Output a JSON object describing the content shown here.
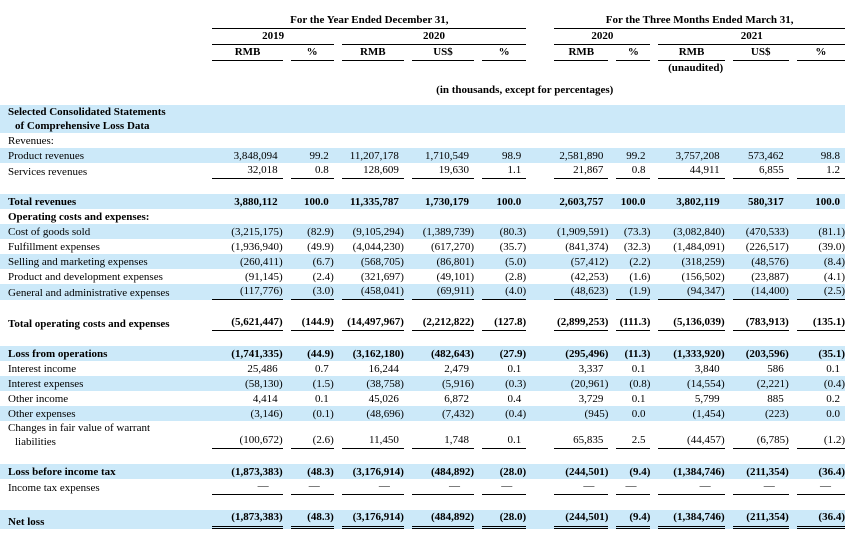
{
  "document": {
    "colors": {
      "row_highlight": "#cce9f9",
      "text": "#000000",
      "background": "#ffffff"
    },
    "header": {
      "year_group_label": "For the Year Ended December 31,",
      "quarter_group_label": "For the Three Months Ended March 31,",
      "year_columns": [
        "2019",
        "2020"
      ],
      "quarter_columns": [
        "2020",
        "2021"
      ],
      "unit_headers": [
        "RMB",
        "%",
        "RMB",
        "US$",
        "%",
        "RMB",
        "%",
        "RMB",
        "US$",
        "%"
      ],
      "unaudited_note": "(unaudited)",
      "units_note": "(in thousands, except for percentages)"
    },
    "rows": [
      {
        "label": "Selected Consolidated Statements",
        "label2": "of Comprehensive Loss Data",
        "bold": true,
        "shaded": true,
        "rule": "none",
        "values": null
      },
      {
        "label": "Revenues:",
        "bold": false,
        "shaded": false,
        "rule": "none",
        "values": null
      },
      {
        "label": "Product revenues",
        "bold": false,
        "shaded": true,
        "rule": "none",
        "values": [
          "3,848,094",
          "99.2",
          "11,207,178",
          "1,710,549",
          "98.9",
          "2,581,890",
          "99.2",
          "3,757,208",
          "573,462",
          "98.8"
        ]
      },
      {
        "label": "Services revenues",
        "bold": false,
        "shaded": false,
        "rule": "single",
        "values": [
          "32,018",
          "0.8",
          "128,609",
          "19,630",
          "1.1",
          "21,867",
          "0.8",
          "44,911",
          "6,855",
          "1.2"
        ]
      },
      {
        "spacer": true
      },
      {
        "label": "Total revenues",
        "bold": true,
        "shaded": true,
        "rule": "none",
        "values": [
          "3,880,112",
          "100.0",
          "11,335,787",
          "1,730,179",
          "100.0",
          "2,603,757",
          "100.0",
          "3,802,119",
          "580,317",
          "100.0"
        ]
      },
      {
        "label": "Operating costs and expenses:",
        "bold": true,
        "shaded": false,
        "rule": "none",
        "values": null
      },
      {
        "label": "Cost of goods sold",
        "bold": false,
        "shaded": true,
        "rule": "none",
        "values": [
          "(3,215,175)",
          "(82.9)",
          "(9,105,294)",
          "(1,389,739)",
          "(80.3)",
          "(1,909,591)",
          "(73.3)",
          "(3,082,840)",
          "(470,533)",
          "(81.1)"
        ]
      },
      {
        "label": "Fulfillment expenses",
        "bold": false,
        "shaded": false,
        "rule": "none",
        "values": [
          "(1,936,940)",
          "(49.9)",
          "(4,044,230)",
          "(617,270)",
          "(35.7)",
          "(841,374)",
          "(32.3)",
          "(1,484,091)",
          "(226,517)",
          "(39.0)"
        ]
      },
      {
        "label": "Selling and marketing expenses",
        "bold": false,
        "shaded": true,
        "rule": "none",
        "values": [
          "(260,411)",
          "(6.7)",
          "(568,705)",
          "(86,801)",
          "(5.0)",
          "(57,412)",
          "(2.2)",
          "(318,259)",
          "(48,576)",
          "(8.4)"
        ]
      },
      {
        "label": "Product and development expenses",
        "bold": false,
        "shaded": false,
        "rule": "none",
        "values": [
          "(91,145)",
          "(2.4)",
          "(321,697)",
          "(49,101)",
          "(2.8)",
          "(42,253)",
          "(1.6)",
          "(156,502)",
          "(23,887)",
          "(4.1)"
        ]
      },
      {
        "label": "General and administrative expenses",
        "bold": false,
        "shaded": true,
        "rule": "single",
        "values": [
          "(117,776)",
          "(3.0)",
          "(458,041)",
          "(69,911)",
          "(4.0)",
          "(48,623)",
          "(1.9)",
          "(94,347)",
          "(14,400)",
          "(2.5)"
        ]
      },
      {
        "spacer": true
      },
      {
        "label": "Total operating costs and expenses",
        "bold": true,
        "shaded": false,
        "rule": "single",
        "values": [
          "(5,621,447)",
          "(144.9)",
          "(14,497,967)",
          "(2,212,822)",
          "(127.8)",
          "(2,899,253)",
          "(111.3)",
          "(5,136,039)",
          "(783,913)",
          "(135.1)"
        ]
      },
      {
        "spacer": true
      },
      {
        "label": "Loss from operations",
        "bold": true,
        "shaded": true,
        "rule": "none",
        "values": [
          "(1,741,335)",
          "(44.9)",
          "(3,162,180)",
          "(482,643)",
          "(27.9)",
          "(295,496)",
          "(11.3)",
          "(1,333,920)",
          "(203,596)",
          "(35.1)"
        ]
      },
      {
        "label": "Interest income",
        "bold": false,
        "shaded": false,
        "rule": "none",
        "values": [
          "25,486",
          "0.7",
          "16,244",
          "2,479",
          "0.1",
          "3,337",
          "0.1",
          "3,840",
          "586",
          "0.1"
        ]
      },
      {
        "label": "Interest expenses",
        "bold": false,
        "shaded": true,
        "rule": "none",
        "values": [
          "(58,130)",
          "(1.5)",
          "(38,758)",
          "(5,916)",
          "(0.3)",
          "(20,961)",
          "(0.8)",
          "(14,554)",
          "(2,221)",
          "(0.4)"
        ]
      },
      {
        "label": "Other income",
        "bold": false,
        "shaded": false,
        "rule": "none",
        "values": [
          "4,414",
          "0.1",
          "45,026",
          "6,872",
          "0.4",
          "3,729",
          "0.1",
          "5,799",
          "885",
          "0.2"
        ]
      },
      {
        "label": "Other expenses",
        "bold": false,
        "shaded": true,
        "rule": "none",
        "values": [
          "(3,146)",
          "(0.1)",
          "(48,696)",
          "(7,432)",
          "(0.4)",
          "(945)",
          "0.0",
          "(1,454)",
          "(223)",
          "0.0"
        ]
      },
      {
        "label": "Changes in fair value of warrant",
        "label2": "liabilities",
        "bold": false,
        "shaded": false,
        "rule": "single",
        "values": [
          "(100,672)",
          "(2.6)",
          "11,450",
          "1,748",
          "0.1",
          "65,835",
          "2.5",
          "(44,457)",
          "(6,785)",
          "(1.2)"
        ]
      },
      {
        "spacer": true
      },
      {
        "label": "Loss before income tax",
        "bold": true,
        "shaded": true,
        "rule": "none",
        "values": [
          "(1,873,383)",
          "(48.3)",
          "(3,176,914)",
          "(484,892)",
          "(28.0)",
          "(244,501)",
          "(9.4)",
          "(1,384,746)",
          "(211,354)",
          "(36.4)"
        ]
      },
      {
        "label": "Income tax expenses",
        "bold": false,
        "shaded": false,
        "rule": "single",
        "values": [
          "—",
          "—",
          "—",
          "—",
          "—",
          "—",
          "—",
          "—",
          "—",
          "—"
        ]
      },
      {
        "spacer": true
      },
      {
        "label": "Net loss",
        "bold": true,
        "shaded": true,
        "rule": "double",
        "values": [
          "(1,873,383)",
          "(48.3)",
          "(3,176,914)",
          "(484,892)",
          "(28.0)",
          "(244,501)",
          "(9.4)",
          "(1,384,746)",
          "(211,354)",
          "(36.4)"
        ]
      }
    ]
  }
}
